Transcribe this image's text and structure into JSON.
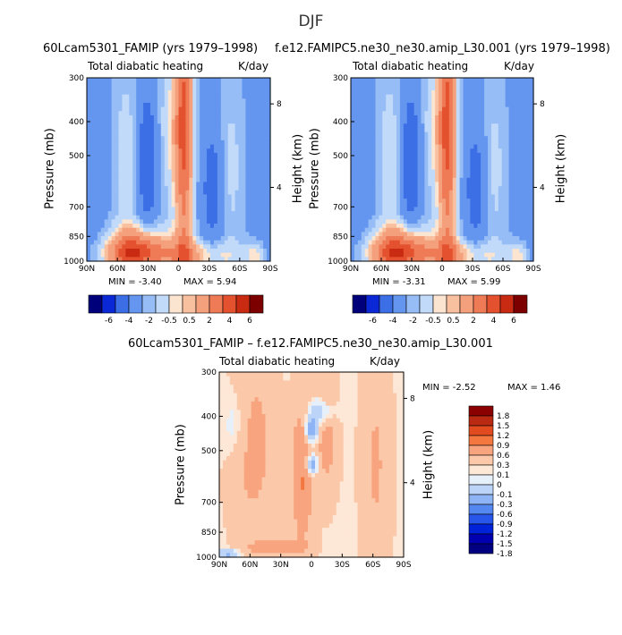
{
  "figure": {
    "season_title": "DJF"
  },
  "colors": {
    "palette_13": [
      "#00007a",
      "#0a28d6",
      "#3c6ee6",
      "#6496f0",
      "#96bdf5",
      "#c2daf9",
      "#fbe4d0",
      "#f9c0a0",
      "#f5a07c",
      "#ef7a56",
      "#e4512e",
      "#c92a12",
      "#7d0000"
    ],
    "palette_diff_14": [
      "#000080",
      "#0000b0",
      "#0022d8",
      "#2855ea",
      "#5587f1",
      "#8fb4f5",
      "#bcd4f8",
      "#e6f0fb",
      "#fde7d6",
      "#fbc8a9",
      "#f8a47e",
      "#f3773f",
      "#e24a20",
      "#ba2a12",
      "#8b0000"
    ]
  },
  "chart_data": [
    {
      "type": "heatmap",
      "title": "60Lcam5301_FAMIP (yrs 1979–1998)",
      "subtitle_left": "Total diabatic heating",
      "subtitle_right": "K/day",
      "ylabel": "Pressure (mb)",
      "ylabel_right": "Height (km)",
      "x_ticks": [
        "90N",
        "60N",
        "30N",
        "0",
        "30S",
        "60S",
        "90S"
      ],
      "y_ticks": [
        "300",
        "400",
        "500",
        "700",
        "850",
        "1000"
      ],
      "y_ticks_right": [
        "8",
        "4"
      ],
      "ylim": [
        1000,
        300
      ],
      "min_label": "MIN = -3.40",
      "max_label": "MAX = 5.94",
      "min": -3.4,
      "max": 5.94,
      "colorbar_levels": [
        "-6",
        "-4",
        "-2",
        "-0.5",
        "0.5",
        "2",
        "4",
        "6"
      ]
    },
    {
      "type": "heatmap",
      "title": "f.e12.FAMIPC5.ne30_ne30.amip_L30.001 (yrs 1979–1998)",
      "subtitle_left": "Total diabatic heating",
      "subtitle_right": "K/day",
      "ylabel": "Pressure (mb)",
      "ylabel_right": "Height (km)",
      "x_ticks": [
        "90N",
        "60N",
        "30N",
        "0",
        "30S",
        "60S",
        "90S"
      ],
      "y_ticks": [
        "300",
        "400",
        "500",
        "700",
        "850",
        "1000"
      ],
      "y_ticks_right": [
        "8",
        "4"
      ],
      "ylim": [
        1000,
        300
      ],
      "min_label": "MIN = -3.31",
      "max_label": "MAX = 5.99",
      "min": -3.31,
      "max": 5.99,
      "colorbar_levels": [
        "-6",
        "-4",
        "-2",
        "-0.5",
        "0.5",
        "2",
        "4",
        "6"
      ]
    },
    {
      "type": "heatmap",
      "title": "60Lcam5301_FAMIP – f.e12.FAMIPC5.ne30_ne30.amip_L30.001",
      "subtitle_left": "Total diabatic heating",
      "subtitle_right": "K/day",
      "ylabel": "Pressure (mb)",
      "ylabel_right": "Height (km)",
      "x_ticks": [
        "90N",
        "60N",
        "30N",
        "0",
        "30S",
        "60S",
        "90S"
      ],
      "y_ticks": [
        "300",
        "400",
        "500",
        "700",
        "850",
        "1000"
      ],
      "y_ticks_right": [
        "8",
        "4"
      ],
      "ylim": [
        1000,
        300
      ],
      "min_label": "MIN = -2.52",
      "max_label": "MAX = 1.46",
      "min": -2.52,
      "max": 1.46,
      "colorbar_levels": [
        "1.8",
        "1.5",
        "1.2",
        "0.9",
        "0.6",
        "0.3",
        "0.1",
        "0",
        "-0.1",
        "-0.3",
        "-0.6",
        "-0.9",
        "-1.2",
        "-1.5",
        "-1.8"
      ]
    }
  ]
}
